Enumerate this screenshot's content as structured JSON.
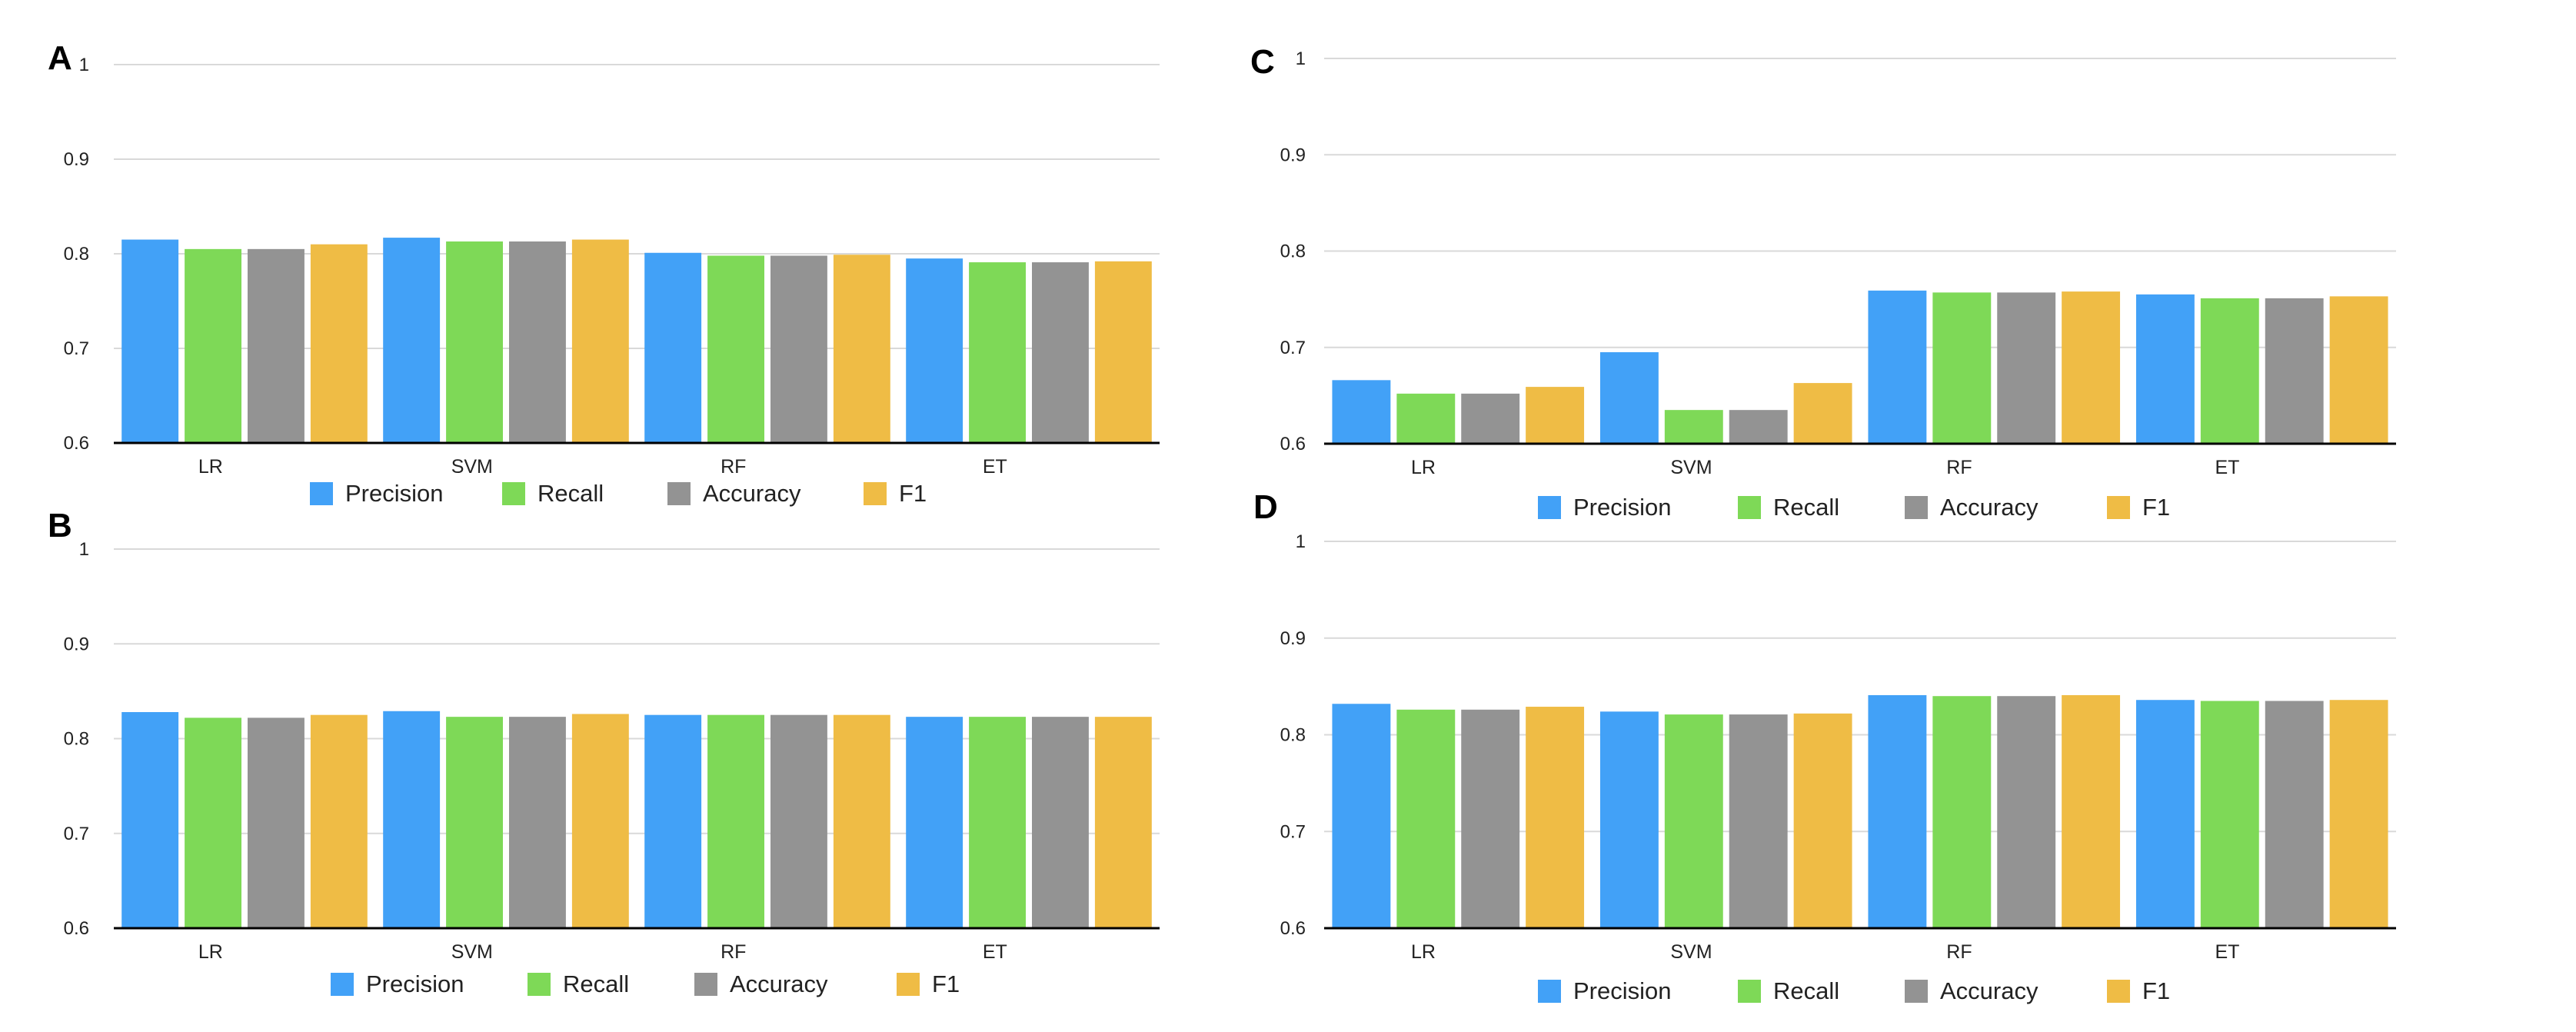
{
  "colors": {
    "Precision": "#42a1f7",
    "Recall": "#7ed957",
    "Accuracy": "#939393",
    "F1": "#efbc45"
  },
  "chart_data": [
    {
      "panel": "A",
      "type": "bar",
      "categories": [
        "LR",
        "SVM",
        "RF",
        "ET"
      ],
      "series": [
        {
          "name": "Precision",
          "values": [
            0.815,
            0.817,
            0.801,
            0.795
          ]
        },
        {
          "name": "Recall",
          "values": [
            0.805,
            0.813,
            0.798,
            0.791
          ]
        },
        {
          "name": "Accuracy",
          "values": [
            0.805,
            0.813,
            0.798,
            0.791
          ]
        },
        {
          "name": "F1",
          "values": [
            0.81,
            0.815,
            0.799,
            0.792
          ]
        }
      ],
      "ylim": [
        0.6,
        1
      ],
      "yticks": [
        "1",
        "0.9",
        "0.8",
        "0.7",
        "0.6"
      ],
      "legend": "bottom",
      "grid": true
    },
    {
      "panel": "B",
      "type": "bar",
      "categories": [
        "LR",
        "SVM",
        "RF",
        "ET"
      ],
      "series": [
        {
          "name": "Precision",
          "values": [
            0.828,
            0.829,
            0.825,
            0.823
          ]
        },
        {
          "name": "Recall",
          "values": [
            0.822,
            0.823,
            0.825,
            0.823
          ]
        },
        {
          "name": "Accuracy",
          "values": [
            0.822,
            0.823,
            0.825,
            0.823
          ]
        },
        {
          "name": "F1",
          "values": [
            0.825,
            0.826,
            0.825,
            0.823
          ]
        }
      ],
      "ylim": [
        0.6,
        1
      ],
      "yticks": [
        "1",
        "0.9",
        "0.8",
        "0.7",
        "0.6"
      ],
      "legend": "bottom",
      "grid": true
    },
    {
      "panel": "C",
      "type": "bar",
      "categories": [
        "LR",
        "SVM",
        "RF",
        "ET"
      ],
      "series": [
        {
          "name": "Precision",
          "values": [
            0.666,
            0.695,
            0.759,
            0.755
          ]
        },
        {
          "name": "Recall",
          "values": [
            0.652,
            0.635,
            0.757,
            0.751
          ]
        },
        {
          "name": "Accuracy",
          "values": [
            0.652,
            0.635,
            0.757,
            0.751
          ]
        },
        {
          "name": "F1",
          "values": [
            0.659,
            0.663,
            0.758,
            0.753
          ]
        }
      ],
      "ylim": [
        0.6,
        1
      ],
      "yticks": [
        "1",
        "0.9",
        "0.8",
        "0.7",
        "0.6"
      ],
      "legend": "bottom",
      "grid": true
    },
    {
      "panel": "D",
      "type": "bar",
      "categories": [
        "LR",
        "SVM",
        "RF",
        "ET"
      ],
      "series": [
        {
          "name": "Precision",
          "values": [
            0.832,
            0.824,
            0.841,
            0.836
          ]
        },
        {
          "name": "Recall",
          "values": [
            0.826,
            0.821,
            0.84,
            0.835
          ]
        },
        {
          "name": "Accuracy",
          "values": [
            0.826,
            0.821,
            0.84,
            0.835
          ]
        },
        {
          "name": "F1",
          "values": [
            0.829,
            0.822,
            0.841,
            0.836
          ]
        }
      ],
      "ylim": [
        0.6,
        1
      ],
      "yticks": [
        "1",
        "0.9",
        "0.8",
        "0.7",
        "0.6"
      ],
      "legend": "bottom",
      "grid": true
    }
  ]
}
